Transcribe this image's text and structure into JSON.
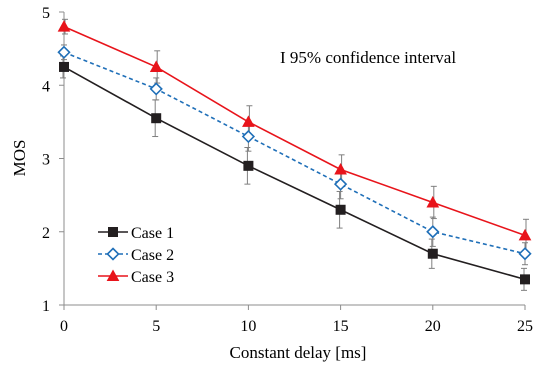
{
  "chart_data": {
    "type": "line",
    "title": "",
    "xlabel": "Constant delay [ms]",
    "ylabel": "MOS",
    "x": [
      0,
      5,
      10,
      15,
      20,
      25
    ],
    "xlim": [
      0,
      25
    ],
    "ylim": [
      1,
      5
    ],
    "xticks": [
      0,
      5,
      10,
      15,
      20,
      25
    ],
    "yticks": [
      1,
      2,
      3,
      4,
      5
    ],
    "grid": false,
    "legend_position": "bottom-left",
    "annotation": "I 95% confidence interval",
    "series": [
      {
        "name": "Case 1",
        "values": [
          4.25,
          3.55,
          2.9,
          2.3,
          1.7,
          1.35
        ],
        "error": [
          0.15,
          0.25,
          0.25,
          0.25,
          0.2,
          0.15
        ],
        "color": "#231f20",
        "line_style": "solid",
        "marker": "square-filled"
      },
      {
        "name": "Case 2",
        "values": [
          4.45,
          3.95,
          3.3,
          2.65,
          2.0,
          1.7
        ],
        "error": [
          0.1,
          0.15,
          0.2,
          0.2,
          0.2,
          0.15
        ],
        "color": "#1f6fb8",
        "line_style": "dashed",
        "marker": "diamond-open"
      },
      {
        "name": "Case 3",
        "values": [
          4.8,
          4.25,
          3.5,
          2.85,
          2.4,
          1.95
        ],
        "error": [
          0.1,
          0.22,
          0.22,
          0.2,
          0.22,
          0.22
        ],
        "color": "#e8141b",
        "line_style": "solid",
        "marker": "triangle-filled"
      }
    ]
  }
}
